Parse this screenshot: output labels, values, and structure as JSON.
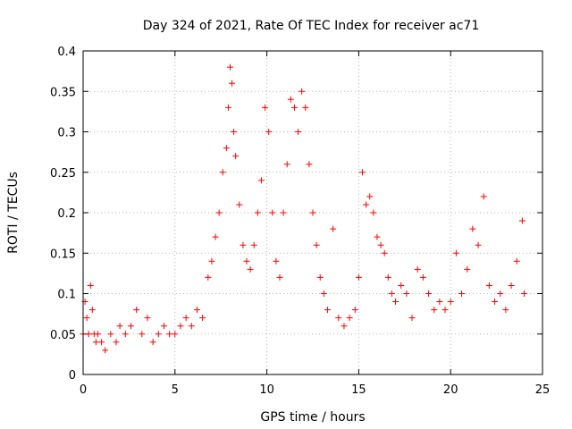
{
  "chart_data": {
    "type": "scatter",
    "title": "Day 324 of 2021, Rate Of TEC Index for receiver ac71",
    "xlabel": "GPS time / hours",
    "ylabel": "ROTI / TECUs",
    "xlim": [
      0,
      25
    ],
    "ylim": [
      0,
      0.4
    ],
    "x_ticks": [
      0,
      5,
      10,
      15,
      20,
      25
    ],
    "x_tick_labels": [
      "0",
      "5",
      "10",
      "15",
      "20",
      "25"
    ],
    "y_ticks": [
      0,
      0.05,
      0.1,
      0.15,
      0.2,
      0.25,
      0.3,
      0.35,
      0.4
    ],
    "y_tick_labels": [
      "0",
      "0.05",
      "0.1",
      "0.15",
      "0.2",
      "0.25",
      "0.3",
      "0.35",
      "0.4"
    ],
    "grid": true,
    "legend": "none",
    "marker": "plus",
    "marker_color": "#ff0000",
    "series": [
      {
        "x": [
          0.0,
          0.1,
          0.2,
          0.3,
          0.4,
          0.5,
          0.6,
          0.7,
          0.8,
          1.0,
          1.2,
          1.5,
          1.8,
          2.0,
          2.3,
          2.6,
          2.9,
          3.2,
          3.5,
          3.8,
          4.1,
          4.4,
          4.7,
          5.0,
          5.3,
          5.6,
          5.9,
          6.2,
          6.5,
          6.8,
          7.0,
          7.2,
          7.4,
          7.6,
          7.8,
          7.9,
          8.0,
          8.1,
          8.2,
          8.3,
          8.5,
          8.7,
          8.9,
          9.1,
          9.3,
          9.5,
          9.7,
          9.9,
          10.1,
          10.3,
          10.5,
          10.7,
          10.9,
          11.1,
          11.3,
          11.5,
          11.7,
          11.9,
          12.1,
          12.3,
          12.5,
          12.7,
          12.9,
          13.1,
          13.3,
          13.6,
          13.9,
          14.2,
          14.5,
          14.8,
          15.0,
          15.2,
          15.4,
          15.6,
          15.8,
          16.0,
          16.2,
          16.4,
          16.6,
          16.8,
          17.0,
          17.3,
          17.6,
          17.9,
          18.2,
          18.5,
          18.8,
          19.1,
          19.4,
          19.7,
          20.0,
          20.3,
          20.6,
          20.9,
          21.2,
          21.5,
          21.8,
          22.1,
          22.4,
          22.7,
          23.0,
          23.3,
          23.6,
          23.9,
          24.0
        ],
        "y": [
          0.05,
          0.09,
          0.07,
          0.05,
          0.11,
          0.08,
          0.05,
          0.04,
          0.05,
          0.04,
          0.03,
          0.05,
          0.04,
          0.06,
          0.05,
          0.06,
          0.08,
          0.05,
          0.07,
          0.04,
          0.05,
          0.06,
          0.05,
          0.05,
          0.06,
          0.07,
          0.06,
          0.08,
          0.07,
          0.12,
          0.14,
          0.17,
          0.2,
          0.25,
          0.28,
          0.33,
          0.38,
          0.36,
          0.3,
          0.27,
          0.21,
          0.16,
          0.14,
          0.13,
          0.16,
          0.2,
          0.24,
          0.33,
          0.3,
          0.2,
          0.14,
          0.12,
          0.2,
          0.26,
          0.34,
          0.33,
          0.3,
          0.35,
          0.33,
          0.26,
          0.2,
          0.16,
          0.12,
          0.1,
          0.08,
          0.18,
          0.07,
          0.06,
          0.07,
          0.08,
          0.12,
          0.25,
          0.21,
          0.22,
          0.2,
          0.17,
          0.16,
          0.15,
          0.12,
          0.1,
          0.09,
          0.11,
          0.1,
          0.07,
          0.13,
          0.12,
          0.1,
          0.08,
          0.09,
          0.08,
          0.09,
          0.15,
          0.1,
          0.13,
          0.18,
          0.16,
          0.22,
          0.11,
          0.09,
          0.1,
          0.08,
          0.11,
          0.14,
          0.19,
          0.1
        ]
      }
    ]
  }
}
